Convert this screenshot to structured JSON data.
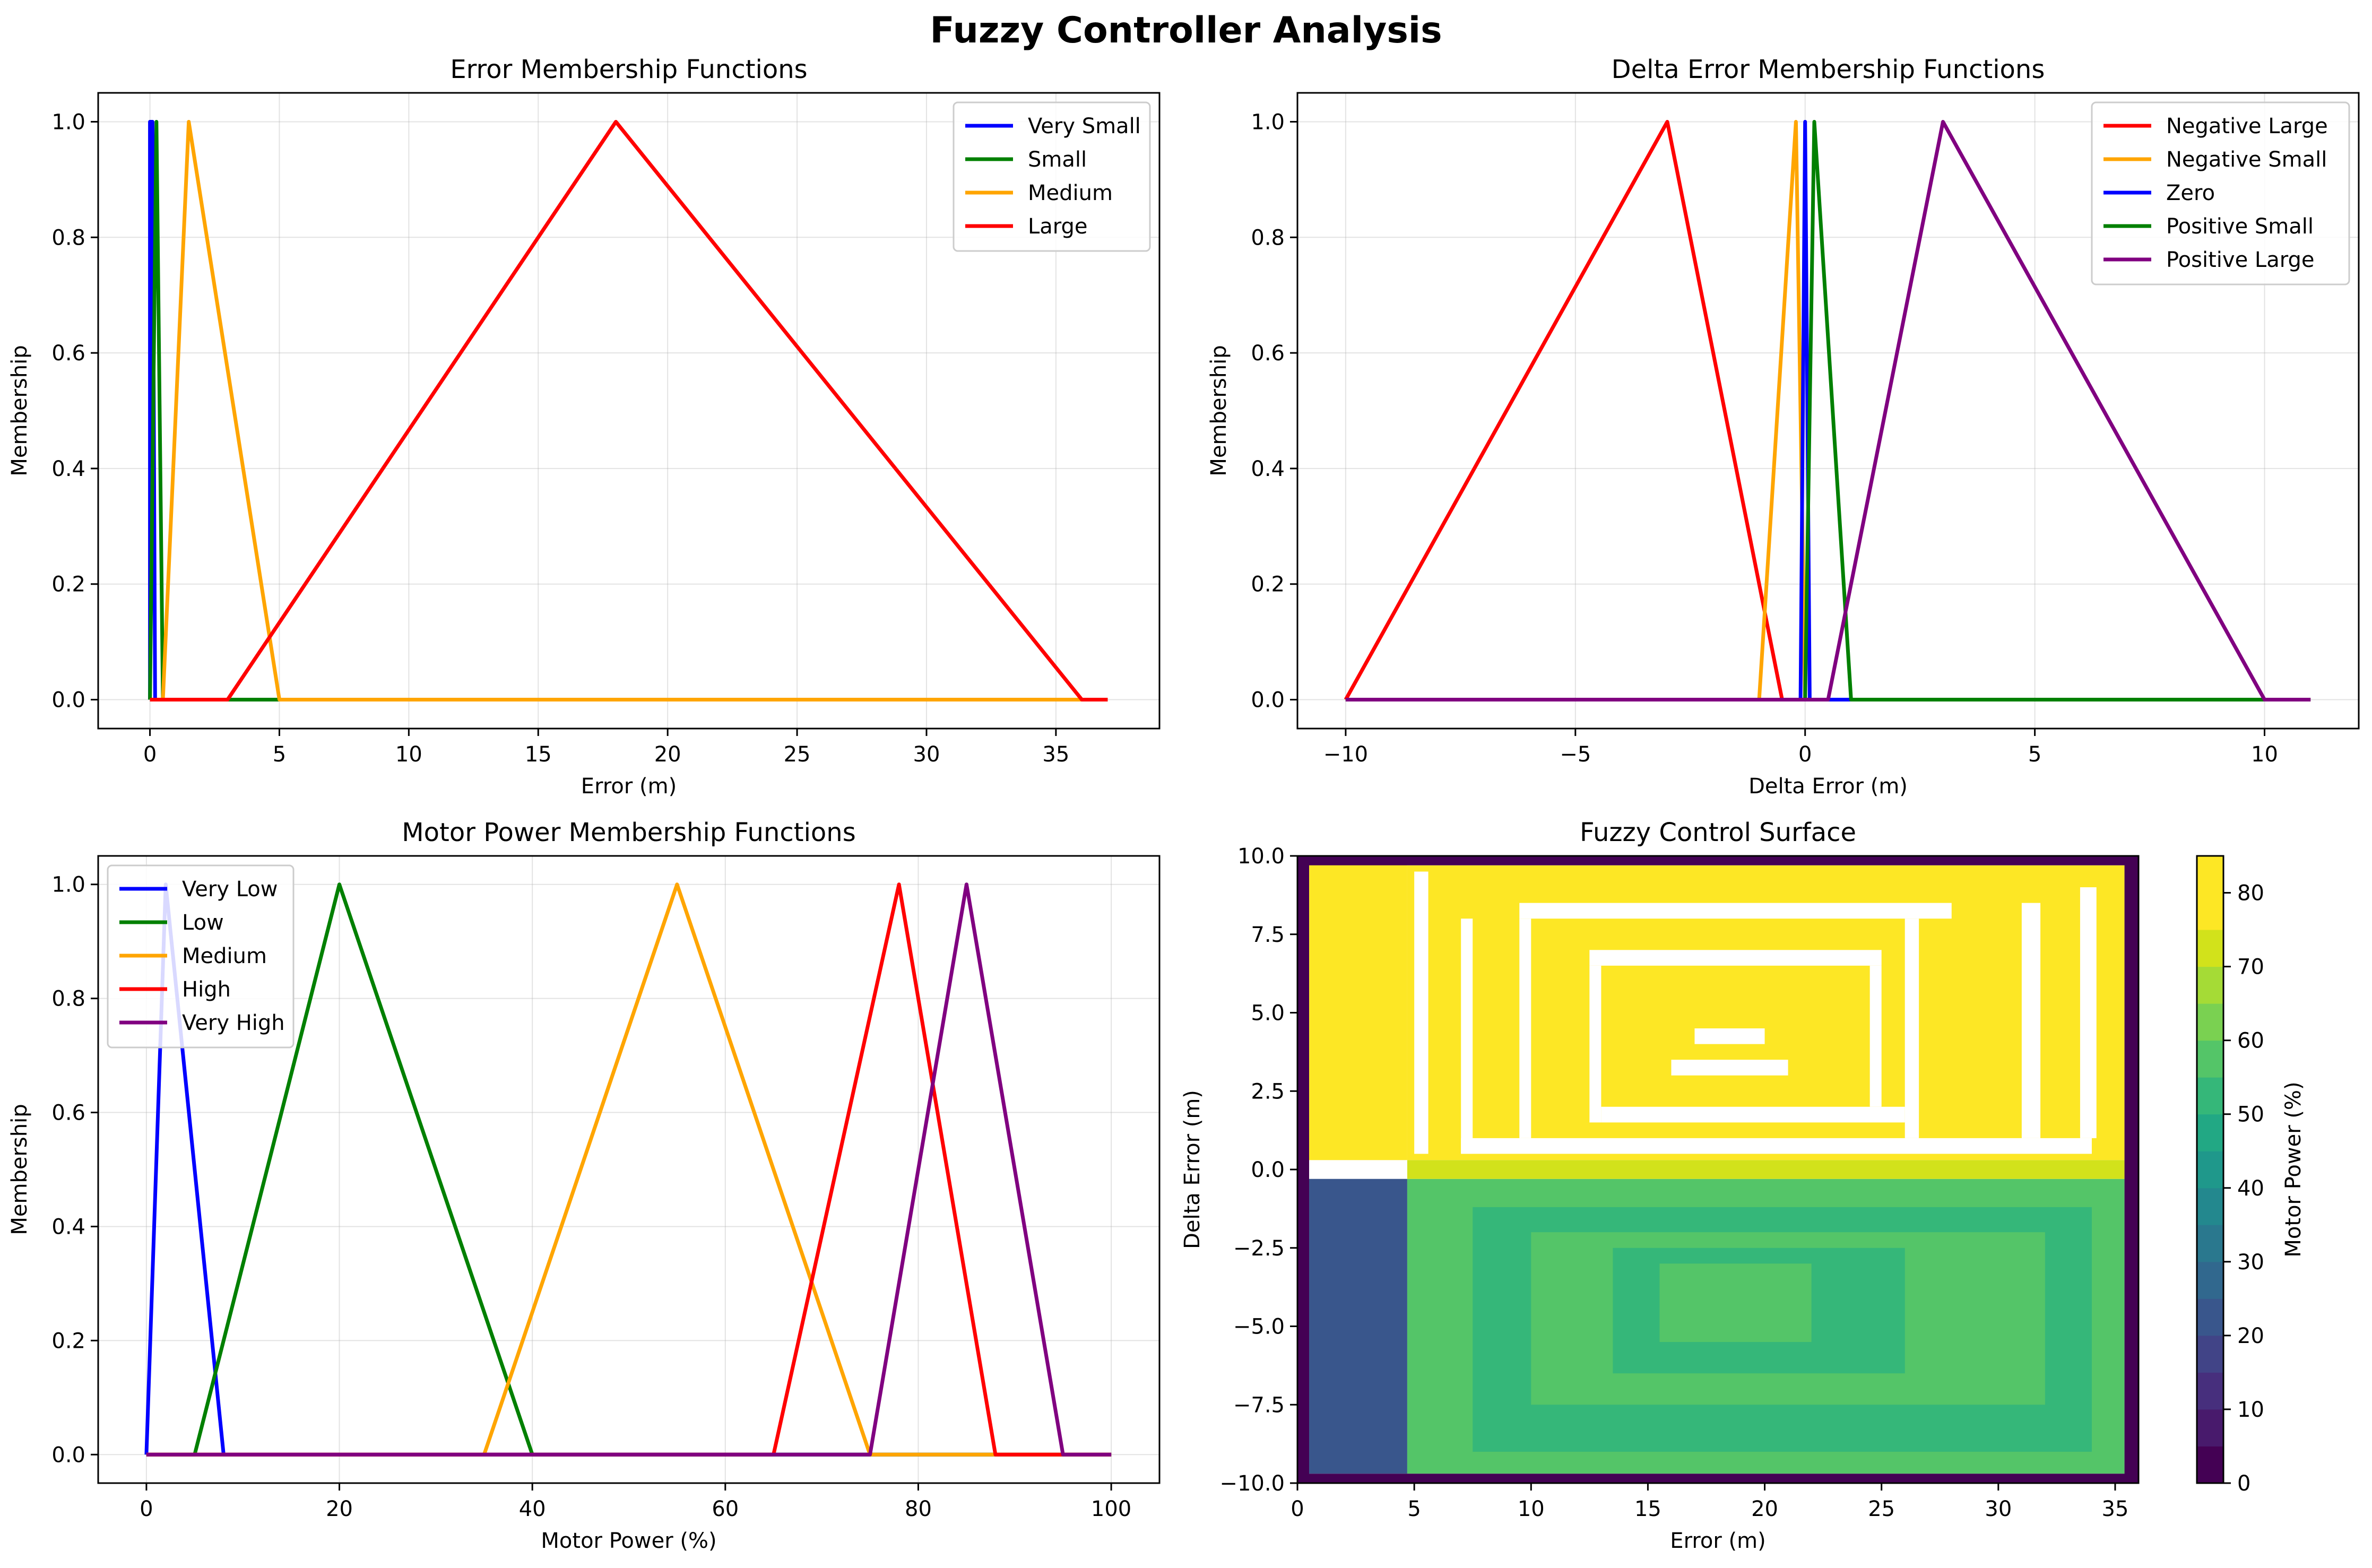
{
  "suptitle": "Fuzzy Controller Analysis",
  "chart_data": [
    {
      "type": "line",
      "title": "Error Membership Functions",
      "xlabel": "Error (m)",
      "ylabel": "Membership",
      "xlim": [
        -2.0,
        39.0
      ],
      "ylim": [
        -0.05,
        1.05
      ],
      "xticks": [
        0,
        5,
        10,
        15,
        20,
        25,
        30,
        35
      ],
      "yticks": [
        0.0,
        0.2,
        0.4,
        0.6,
        0.8,
        1.0
      ],
      "grid": true,
      "legend": "top-right",
      "series": [
        {
          "name": "Very Small",
          "color": "#0000ff",
          "x": [
            0,
            0.0,
            0.1,
            0.2,
            37
          ],
          "y": [
            0,
            1,
            1,
            0,
            0
          ]
        },
        {
          "name": "Small",
          "color": "#008000",
          "x": [
            0,
            0.0,
            0.25,
            0.5,
            37
          ],
          "y": [
            0,
            0,
            1,
            0,
            0
          ]
        },
        {
          "name": "Medium",
          "color": "#ffa500",
          "x": [
            0,
            0.5,
            1.5,
            5.0,
            37
          ],
          "y": [
            0,
            0,
            1,
            0,
            0
          ]
        },
        {
          "name": "Large",
          "color": "#ff0000",
          "x": [
            0,
            3.0,
            18.0,
            36.0,
            37
          ],
          "y": [
            0,
            0,
            1,
            0,
            0
          ]
        }
      ]
    },
    {
      "type": "line",
      "title": "Delta Error Membership Functions",
      "xlabel": "Delta Error (m)",
      "ylabel": "Membership",
      "xlim": [
        -11.05,
        12.05
      ],
      "ylim": [
        -0.05,
        1.05
      ],
      "xticks": [
        -10,
        -5,
        0,
        5,
        10
      ],
      "xticklabels": [
        "−10",
        "−5",
        "0",
        "5",
        "10"
      ],
      "yticks": [
        0.0,
        0.2,
        0.4,
        0.6,
        0.8,
        1.0
      ],
      "grid": true,
      "legend": "top-right",
      "series": [
        {
          "name": "Negative Large",
          "color": "#ff0000",
          "x": [
            -10,
            -3,
            -0.5,
            11
          ],
          "y": [
            0,
            1,
            0,
            0
          ]
        },
        {
          "name": "Negative Small",
          "color": "#ffa500",
          "x": [
            -10,
            -1.0,
            -0.2,
            0.0,
            11
          ],
          "y": [
            0,
            0,
            1,
            0,
            0
          ]
        },
        {
          "name": "Zero",
          "color": "#0000ff",
          "x": [
            -10,
            -0.1,
            0.0,
            0.1,
            11
          ],
          "y": [
            0,
            0,
            1,
            0,
            0
          ]
        },
        {
          "name": "Positive Small",
          "color": "#008000",
          "x": [
            -10,
            0.0,
            0.2,
            1.0,
            11
          ],
          "y": [
            0,
            0,
            1,
            0,
            0
          ]
        },
        {
          "name": "Positive Large",
          "color": "#800080",
          "x": [
            -10,
            0.5,
            3.0,
            10.0,
            11
          ],
          "y": [
            0,
            0,
            1,
            0,
            0
          ]
        }
      ]
    },
    {
      "type": "line",
      "title": "Motor Power Membership Functions",
      "xlabel": "Motor Power (%)",
      "ylabel": "Membership",
      "xlim": [
        -5,
        105
      ],
      "ylim": [
        -0.05,
        1.05
      ],
      "xticks": [
        0,
        20,
        40,
        60,
        80,
        100
      ],
      "yticks": [
        0.0,
        0.2,
        0.4,
        0.6,
        0.8,
        1.0
      ],
      "grid": true,
      "legend": "top-left",
      "series": [
        {
          "name": "Very Low",
          "color": "#0000ff",
          "x": [
            0,
            0,
            2,
            8,
            100
          ],
          "y": [
            0,
            0,
            1,
            0,
            0
          ]
        },
        {
          "name": "Low",
          "color": "#008000",
          "x": [
            0,
            5,
            20,
            40,
            100
          ],
          "y": [
            0,
            0,
            1,
            0,
            0
          ]
        },
        {
          "name": "Medium",
          "color": "#ffa500",
          "x": [
            0,
            35,
            55,
            75,
            100
          ],
          "y": [
            0,
            0,
            1,
            0,
            0
          ]
        },
        {
          "name": "High",
          "color": "#ff0000",
          "x": [
            0,
            65,
            78,
            88,
            100
          ],
          "y": [
            0,
            0,
            1,
            0,
            0
          ]
        },
        {
          "name": "Very High",
          "color": "#800080",
          "x": [
            0,
            75,
            85,
            95,
            100
          ],
          "y": [
            0,
            0,
            1,
            0,
            0
          ]
        }
      ]
    },
    {
      "type": "heatmap",
      "title": "Fuzzy Control Surface",
      "xlabel": "Error (m)",
      "ylabel": "Delta Error (m)",
      "xlim": [
        0,
        36
      ],
      "ylim": [
        -10,
        10
      ],
      "xticks": [
        0,
        5,
        10,
        15,
        20,
        25,
        30,
        35
      ],
      "yticks": [
        -10.0,
        -7.5,
        -5.0,
        -2.5,
        0.0,
        2.5,
        5.0,
        7.5,
        10.0
      ],
      "yticklabels": [
        "−10.0",
        "−7.5",
        "−5.0",
        "−2.5",
        "0.0",
        "2.5",
        "5.0",
        "7.5",
        "10.0"
      ],
      "colorbar_label": "Motor Power (%)",
      "colorbar_ticks": [
        0,
        10,
        20,
        30,
        40,
        50,
        60,
        70,
        80
      ],
      "colorbar_levels": [
        0,
        5,
        10,
        15,
        20,
        25,
        30,
        35,
        40,
        45,
        50,
        55,
        60,
        65,
        70,
        75,
        80,
        85
      ],
      "regions": [
        {
          "x": [
            0,
            0.5
          ],
          "y": [
            -10,
            10
          ],
          "value": 2
        },
        {
          "x": [
            0.5,
            4.7
          ],
          "y": [
            0.3,
            10
          ],
          "value": 76
        },
        {
          "x": [
            0.5,
            4.7
          ],
          "y": [
            -9.7,
            -0.3
          ],
          "value": 22
        },
        {
          "x": [
            4.7,
            35.4
          ],
          "y": [
            0.3,
            9.7
          ],
          "value": 82
        },
        {
          "x": [
            4.7,
            35.4
          ],
          "y": [
            -9.7,
            -0.3
          ],
          "value": 57
        },
        {
          "x": [
            4.7,
            35.4
          ],
          "y": [
            -0.3,
            0.3
          ],
          "value": 70
        },
        {
          "x": [
            35.4,
            36
          ],
          "y": [
            -10,
            10
          ],
          "value": 2
        },
        {
          "x": [
            0,
            36
          ],
          "y": [
            -10,
            -9.7
          ],
          "value": 2
        },
        {
          "x": [
            0,
            36
          ],
          "y": [
            9.7,
            10
          ],
          "value": 2
        }
      ],
      "inner_regions": [
        {
          "x": [
            7.5,
            34
          ],
          "y": [
            -9.0,
            -1.2
          ],
          "value": 52
        },
        {
          "x": [
            10,
            32
          ],
          "y": [
            -7.5,
            -2.0
          ],
          "value": 57
        },
        {
          "x": [
            13.5,
            26
          ],
          "y": [
            -6.5,
            -2.5
          ],
          "value": 52
        },
        {
          "x": [
            15.5,
            22
          ],
          "y": [
            -5.5,
            -3.0
          ],
          "value": 57
        }
      ],
      "gaps": [
        {
          "x": [
            5.0,
            5.6
          ],
          "y": [
            0.5,
            9.5
          ]
        },
        {
          "x": [
            7.0,
            34.0
          ],
          "y": [
            0.5,
            1.0
          ]
        },
        {
          "x": [
            7.0,
            7.5
          ],
          "y": [
            0.5,
            8.0
          ]
        },
        {
          "x": [
            9.5,
            28.0
          ],
          "y": [
            8.0,
            8.5
          ]
        },
        {
          "x": [
            9.5,
            10.0
          ],
          "y": [
            1.0,
            8.0
          ]
        },
        {
          "x": [
            26.0,
            26.6
          ],
          "y": [
            1.0,
            8.0
          ]
        },
        {
          "x": [
            12.5,
            25.0
          ],
          "y": [
            6.5,
            7.0
          ]
        },
        {
          "x": [
            12.5,
            13.0
          ],
          "y": [
            1.5,
            6.5
          ]
        },
        {
          "x": [
            13.0,
            26.0
          ],
          "y": [
            1.5,
            2.0
          ]
        },
        {
          "x": [
            24.5,
            25.0
          ],
          "y": [
            2.0,
            6.5
          ]
        },
        {
          "x": [
            16.0,
            21.0
          ],
          "y": [
            3.0,
            3.5
          ]
        },
        {
          "x": [
            17.0,
            20.0
          ],
          "y": [
            4.0,
            4.5
          ]
        },
        {
          "x": [
            31.0,
            31.8
          ],
          "y": [
            1.0,
            8.5
          ]
        },
        {
          "x": [
            33.5,
            34.2
          ],
          "y": [
            1.0,
            9.0
          ]
        }
      ]
    }
  ]
}
